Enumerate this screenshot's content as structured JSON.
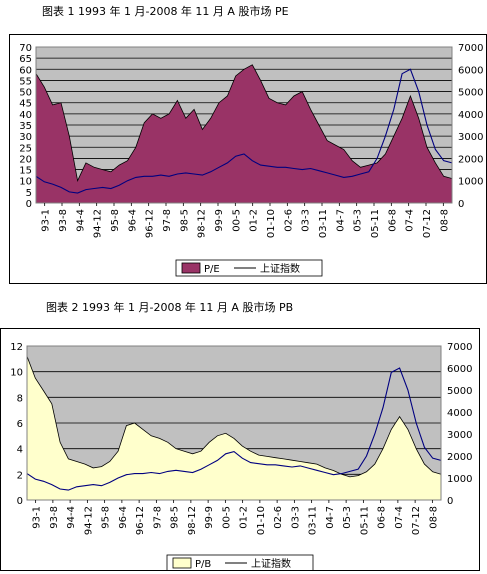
{
  "titles": {
    "chart1": "图表 1 1993 年 1 月-2008 年 11 月 A 股市场 PE",
    "chart2": "图表 2 1993 年 1 月-2008 年 11 月 A 股市场 PB"
  },
  "chart_data": [
    {
      "type": "area",
      "title": "图表 1 1993 年 1 月-2008 年 11 月 A 股市场 PE",
      "x_ticks": [
        "93-1",
        "93-8",
        "94-4",
        "94-12",
        "95-8",
        "96-4",
        "96-12",
        "97-8",
        "98-5",
        "98-12",
        "99-9",
        "00-5",
        "01-2",
        "01-10",
        "02-6",
        "03-3",
        "03-11",
        "04-7",
        "05-3",
        "05-11",
        "06-8",
        "07-4",
        "07-12",
        "08-8"
      ],
      "y_left": {
        "min": 0,
        "max": 70,
        "step": 5,
        "ticks": [
          "0",
          "5",
          "10",
          "15",
          "20",
          "25",
          "30",
          "35",
          "40",
          "45",
          "50",
          "55",
          "60",
          "65",
          "70"
        ]
      },
      "y_right": {
        "min": 0,
        "max": 7000,
        "step": 1000,
        "ticks": [
          "0",
          "1000",
          "2000",
          "3000",
          "4000",
          "5000",
          "6000",
          "7000"
        ]
      },
      "series": [
        {
          "name": "P/E",
          "kind": "area",
          "axis": "left",
          "color": "#993366",
          "x": [
            0,
            1,
            2,
            3,
            4,
            5,
            6,
            7,
            8,
            9,
            10,
            11,
            12,
            13,
            14,
            15,
            16,
            17,
            18,
            19,
            20,
            21,
            22,
            23,
            24,
            25,
            26,
            27,
            28,
            29,
            30,
            31,
            32,
            33,
            34,
            35,
            36,
            37,
            38,
            39,
            40,
            41,
            42,
            43,
            44,
            45,
            46,
            47,
            48,
            49,
            50
          ],
          "values": [
            58,
            52,
            44,
            45,
            30,
            10,
            18,
            16,
            15,
            14,
            17,
            19,
            25,
            36,
            40,
            38,
            40,
            46,
            38,
            42,
            33,
            38,
            45,
            48,
            57,
            60,
            62,
            55,
            47,
            45,
            44,
            48,
            50,
            42,
            35,
            28,
            26,
            24,
            19,
            16,
            17,
            18,
            22,
            30,
            38,
            48,
            38,
            25,
            18,
            12,
            11
          ]
        },
        {
          "name": "上证指数",
          "kind": "line",
          "axis": "right",
          "color": "#000080",
          "x": [
            0,
            1,
            2,
            3,
            4,
            5,
            6,
            7,
            8,
            9,
            10,
            11,
            12,
            13,
            14,
            15,
            16,
            17,
            18,
            19,
            20,
            21,
            22,
            23,
            24,
            25,
            26,
            27,
            28,
            29,
            30,
            31,
            32,
            33,
            34,
            35,
            36,
            37,
            38,
            39,
            40,
            41,
            42,
            43,
            44,
            45,
            46,
            47,
            48,
            49,
            50
          ],
          "values": [
            1200,
            950,
            850,
            700,
            500,
            450,
            600,
            650,
            700,
            650,
            800,
            1000,
            1150,
            1200,
            1200,
            1250,
            1200,
            1300,
            1350,
            1300,
            1250,
            1400,
            1600,
            1800,
            2100,
            2200,
            1900,
            1700,
            1650,
            1600,
            1600,
            1550,
            1500,
            1550,
            1450,
            1350,
            1250,
            1150,
            1200,
            1300,
            1400,
            2000,
            3000,
            4200,
            5800,
            6000,
            5000,
            3500,
            2400,
            1900,
            1800
          ]
        }
      ],
      "legend": [
        "P/E",
        "上证指数"
      ],
      "legend_position": "bottom",
      "grid": true
    },
    {
      "type": "area",
      "title": "图表 2 1993 年 1 月-2008 年 11 月 A 股市场 PB",
      "x_ticks": [
        "93-1",
        "93-8",
        "94-4",
        "94-12",
        "95-8",
        "96-4",
        "96-12",
        "97-8",
        "98-5",
        "98-12",
        "99-9",
        "00-5",
        "01-2",
        "01-10",
        "02-6",
        "03-3",
        "03-11",
        "04-7",
        "05-3",
        "05-11",
        "06-8",
        "07-4",
        "07-12",
        "08-8"
      ],
      "y_left": {
        "min": 0,
        "max": 12,
        "step": 2,
        "ticks": [
          "0",
          "2",
          "4",
          "6",
          "8",
          "10",
          "12"
        ]
      },
      "y_right": {
        "min": 0,
        "max": 7000,
        "step": 1000,
        "ticks": [
          "0",
          "1000",
          "2000",
          "3000",
          "4000",
          "5000",
          "6000",
          "7000"
        ]
      },
      "series": [
        {
          "name": "P/B",
          "kind": "area",
          "axis": "left",
          "color": "#ffffcc",
          "x": [
            0,
            1,
            2,
            3,
            4,
            5,
            6,
            7,
            8,
            9,
            10,
            11,
            12,
            13,
            14,
            15,
            16,
            17,
            18,
            19,
            20,
            21,
            22,
            23,
            24,
            25,
            26,
            27,
            28,
            29,
            30,
            31,
            32,
            33,
            34,
            35,
            36,
            37,
            38,
            39,
            40,
            41,
            42,
            43,
            44,
            45,
            46,
            47,
            48,
            49,
            50
          ],
          "values": [
            11.2,
            9.5,
            8.5,
            7.5,
            4.5,
            3.2,
            3.0,
            2.8,
            2.5,
            2.6,
            3.0,
            3.8,
            5.8,
            6.0,
            5.5,
            5.0,
            4.8,
            4.5,
            4.0,
            3.8,
            3.6,
            3.8,
            4.5,
            5.0,
            5.2,
            4.8,
            4.2,
            3.8,
            3.5,
            3.4,
            3.3,
            3.2,
            3.1,
            3.0,
            2.9,
            2.8,
            2.5,
            2.3,
            2.0,
            1.8,
            1.9,
            2.2,
            2.8,
            4.0,
            5.5,
            6.5,
            5.5,
            4.0,
            2.8,
            2.2,
            2.0
          ]
        },
        {
          "name": "上证指数",
          "kind": "line",
          "axis": "right",
          "color": "#000080",
          "x": [
            0,
            1,
            2,
            3,
            4,
            5,
            6,
            7,
            8,
            9,
            10,
            11,
            12,
            13,
            14,
            15,
            16,
            17,
            18,
            19,
            20,
            21,
            22,
            23,
            24,
            25,
            26,
            27,
            28,
            29,
            30,
            31,
            32,
            33,
            34,
            35,
            36,
            37,
            38,
            39,
            40,
            41,
            42,
            43,
            44,
            45,
            46,
            47,
            48,
            49,
            50
          ],
          "values": [
            1200,
            950,
            850,
            700,
            500,
            450,
            600,
            650,
            700,
            650,
            800,
            1000,
            1150,
            1200,
            1200,
            1250,
            1200,
            1300,
            1350,
            1300,
            1250,
            1400,
            1600,
            1800,
            2100,
            2200,
            1900,
            1700,
            1650,
            1600,
            1600,
            1550,
            1500,
            1550,
            1450,
            1350,
            1250,
            1150,
            1200,
            1300,
            1400,
            2000,
            3000,
            4200,
            5800,
            6000,
            5000,
            3500,
            2400,
            1900,
            1800
          ]
        }
      ],
      "legend": [
        "P/B",
        "上证指数"
      ],
      "legend_position": "bottom",
      "grid": true
    }
  ],
  "colors": {
    "plot_bg": "#c0c0c0",
    "grid": "#000000",
    "axis_text": "#000000"
  }
}
